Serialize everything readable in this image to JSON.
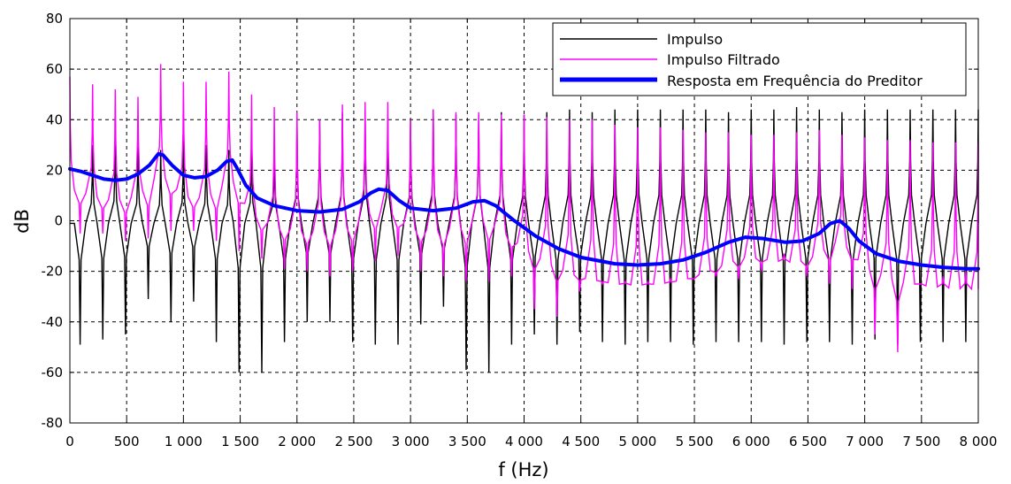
{
  "chart_data": {
    "type": "line",
    "xlabel": "f (Hz)",
    "ylabel": "dB",
    "xlim": [
      0,
      8000
    ],
    "ylim": [
      -80,
      80
    ],
    "x_ticks": [
      0,
      500,
      1000,
      1500,
      2000,
      2500,
      3000,
      3500,
      4000,
      4500,
      5000,
      5500,
      6000,
      6500,
      7000,
      7500,
      8000
    ],
    "x_tick_labels": [
      "0",
      "500",
      "1 000",
      "1 500",
      "2 000",
      "2 500",
      "3 000",
      "3 500",
      "4 000",
      "4 500",
      "5 000",
      "5 500",
      "6 000",
      "6 500",
      "7 000",
      "7 500",
      "8 000"
    ],
    "y_ticks": [
      -80,
      -60,
      -40,
      -20,
      0,
      20,
      40,
      60,
      80
    ],
    "y_tick_labels": [
      "-80",
      "-60",
      "-40",
      "-20",
      "0",
      "20",
      "40",
      "60",
      "80"
    ],
    "grid": true,
    "legend_position": "top-right",
    "series": [
      {
        "name": "Impulso",
        "color": "#000000",
        "style": "comb",
        "baseline_db": -1,
        "period_hz": 200,
        "peak_db": [
          -1,
          30,
          34,
          30,
          28,
          32,
          30,
          28,
          32,
          28,
          38,
          40,
          43,
          42,
          41,
          40,
          44,
          42,
          42,
          43,
          42,
          43,
          44,
          43,
          44,
          44,
          44,
          44,
          44,
          43,
          44,
          44,
          45,
          44,
          43,
          44,
          44,
          44,
          44,
          44,
          44
        ],
        "dip_db": [
          -49,
          -47,
          -45,
          -31,
          -40,
          -32,
          -48,
          -60,
          -60,
          -48,
          -40,
          -40,
          -48,
          -49,
          -49,
          -41,
          -34,
          -59,
          -60,
          -49,
          -45,
          -49,
          -44,
          -48,
          -49,
          -48,
          -48,
          -49,
          -48,
          -48,
          -48,
          -49,
          -48,
          -48,
          -49,
          -47,
          -49,
          -48,
          -48,
          -48
        ]
      },
      {
        "name": "Impulso Filtrado",
        "color": "#ff00ff",
        "style": "comb",
        "period_hz": 200,
        "peak_db": [
          57,
          54,
          52,
          49,
          62,
          55,
          55,
          59,
          50,
          45,
          43,
          40,
          46,
          47,
          47,
          40,
          44,
          43,
          43,
          42,
          42,
          41,
          40,
          40,
          38,
          37,
          37,
          36,
          35,
          35,
          34,
          34,
          35,
          36,
          34,
          33,
          32,
          32,
          31,
          31,
          31
        ],
        "dip_db": [
          -5,
          -5,
          -8,
          -7,
          -4,
          -4,
          -8,
          -12,
          -15,
          -19,
          -20,
          -22,
          -20,
          -16,
          -14,
          -20,
          -22,
          -24,
          -24,
          -22,
          -35,
          -38,
          -28,
          -25,
          -24,
          -24,
          -23,
          -23,
          -22,
          -23,
          -20,
          -13,
          -22,
          -25,
          -27,
          -45,
          -52,
          -25,
          -22,
          -20
        ]
      },
      {
        "name": "Resposta em Frequência do Preditor",
        "color": "#0000ff",
        "style": "smooth",
        "x": [
          0,
          100,
          200,
          300,
          400,
          500,
          600,
          700,
          780,
          820,
          900,
          1000,
          1100,
          1200,
          1300,
          1380,
          1430,
          1470,
          1550,
          1650,
          1800,
          2000,
          2200,
          2400,
          2550,
          2650,
          2720,
          2800,
          2900,
          3000,
          3200,
          3400,
          3550,
          3650,
          3750,
          3900,
          4100,
          4300,
          4500,
          4800,
          5000,
          5200,
          5400,
          5600,
          5800,
          5950,
          6100,
          6300,
          6450,
          6600,
          6700,
          6780,
          6860,
          6950,
          7100,
          7300,
          7500,
          7700,
          7900,
          8000
        ],
        "y": [
          20.5,
          19.5,
          18,
          16.5,
          16,
          16.5,
          18.5,
          22,
          26.5,
          26,
          22,
          18,
          17,
          17.5,
          20,
          23.5,
          24,
          21,
          14,
          9,
          6,
          4,
          3.5,
          4.5,
          7.5,
          11,
          12.5,
          12,
          8,
          5,
          4,
          5,
          7.5,
          8,
          6,
          0.5,
          -6,
          -11,
          -14.5,
          -17,
          -17.5,
          -17,
          -15.5,
          -12.5,
          -8.5,
          -6.5,
          -7,
          -8.5,
          -8,
          -5,
          -1,
          0,
          -3,
          -8,
          -13,
          -16,
          -17.5,
          -18.5,
          -19,
          -19
        ]
      }
    ]
  }
}
